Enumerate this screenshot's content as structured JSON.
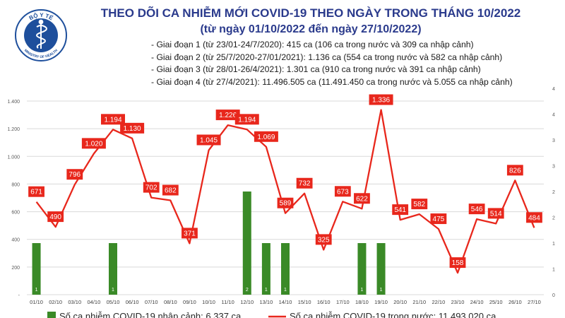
{
  "logo": {
    "top_text": "BỘ Y TẾ",
    "bottom_text": "MINISTRY OF HEALTH",
    "icon": "caduceus-icon",
    "color": "#1e4f9c"
  },
  "header": {
    "title_line1": "THEO DÕI CA NHIỄM MỚI COVID-19 THEO NGÀY TRONG THÁNG 10/2022",
    "title_line2": "(từ ngày 01/10/2022 đến ngày 27/10/2022)",
    "title_color": "#2a3a8c"
  },
  "phases": [
    "- Giai đoạn 1 (từ 23/01-24/7/2020): 415 ca (106 ca trong nước và 309 ca nhập cảnh)",
    "- Giai đoạn 2 (từ 25/7/2020-27/01/2021): 1.136 ca (554 ca trong nước và 582 ca nhập cảnh)",
    "- Giai đoạn 3 (từ 28/01-26/4/2021): 1.301 ca (910 ca trong nước và 391 ca nhập cảnh)",
    "- Giai đoạn 4 (từ 27/4/2021): 11.496.505 ca (11.491.450 ca trong nước và 5.055 ca nhập cảnh)"
  ],
  "chart_data": {
    "type": "bar+line",
    "categories": [
      "01/10",
      "02/10",
      "03/10",
      "04/10",
      "05/10",
      "06/10",
      "07/10",
      "08/10",
      "09/10",
      "10/10",
      "11/10",
      "12/10",
      "13/10",
      "14/10",
      "15/10",
      "16/10",
      "17/10",
      "18/10",
      "19/10",
      "20/10",
      "21/10",
      "22/10",
      "23/10",
      "24/10",
      "25/10",
      "26/10",
      "27/10"
    ],
    "line_series": {
      "name": "Số ca nhiễm COVID-19 trong nước: 11.493.020 ca",
      "values": [
        671,
        490,
        796,
        1020,
        1194,
        1130,
        702,
        682,
        371,
        1045,
        1226,
        1194,
        1069,
        589,
        732,
        325,
        673,
        622,
        1336,
        541,
        582,
        475,
        158,
        546,
        514,
        826,
        484
      ],
      "labels": [
        "671",
        "490",
        "796",
        "1.020",
        "1.194",
        "1.130",
        "702",
        "682",
        "371",
        "1.045",
        "1.226",
        "1.194",
        "1.069",
        "589",
        "732",
        "325",
        "673",
        "622",
        "1.336",
        "541",
        "582",
        "475",
        "158",
        "546",
        "514",
        "826",
        "484"
      ],
      "color": "#e8271c",
      "axis": "left"
    },
    "bar_series": {
      "name": "Số ca nhiễm COVID-19 nhập cảnh: 6.337 ca",
      "values": [
        1,
        0,
        0,
        0,
        1,
        0,
        0,
        0,
        0,
        0,
        0,
        2,
        1,
        1,
        0,
        0,
        0,
        1,
        1,
        0,
        0,
        0,
        0,
        0,
        0,
        0,
        0
      ],
      "labels": [
        "1",
        "-",
        "-",
        "-",
        "1",
        "-",
        "-",
        "-",
        "-",
        "-",
        "-",
        "2",
        "1",
        "1",
        "-",
        "-",
        "-",
        "1",
        "1",
        "-",
        "-",
        "-",
        "-",
        "-",
        "-",
        "-",
        "-"
      ],
      "color": "#3a8a27",
      "axis": "right"
    },
    "y_left": {
      "min": 0,
      "max": 1400,
      "ticks": [
        "-",
        "200",
        "400",
        "600",
        "800",
        "1.000",
        "1.200",
        "1.400"
      ]
    },
    "y_right": {
      "min": 0,
      "max": 4,
      "ticks": [
        "0",
        "1",
        "1",
        "2",
        "2",
        "3",
        "3",
        "4",
        "4"
      ]
    },
    "grid": true
  }
}
